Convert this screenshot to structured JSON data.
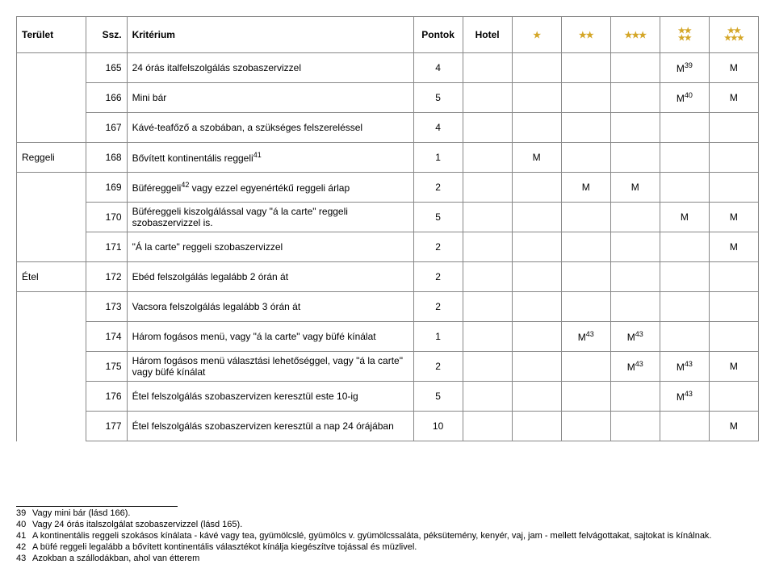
{
  "header": {
    "area": "Terület",
    "num": "Ssz.",
    "criterion": "Kritérium",
    "points": "Pontok",
    "hotel": "Hotel"
  },
  "stars": {
    "s1": "★",
    "s2": "★★",
    "s3": "★★★",
    "s4top": "★★",
    "s4bot": "★★",
    "s5top": "★★",
    "s5bot": "★★★"
  },
  "rows": [
    {
      "area": "",
      "num": "165",
      "crit": "24 órás italfelszolgálás szobaszervizzel",
      "sup": "",
      "pts": "4",
      "hotel": "",
      "c1": "",
      "c2": "",
      "c3": "",
      "c4": "M",
      "c4sup": "39",
      "c5": "M"
    },
    {
      "area": "",
      "num": "166",
      "crit": "Mini bár",
      "sup": "",
      "pts": "5",
      "hotel": "",
      "c1": "",
      "c2": "",
      "c3": "",
      "c4": "M",
      "c4sup": "40",
      "c5": "M"
    },
    {
      "area": "",
      "num": "167",
      "crit": "Kávé-teafőző a szobában, a szükséges felszereléssel",
      "sup": "",
      "pts": "4",
      "hotel": "",
      "c1": "",
      "c2": "",
      "c3": "",
      "c4": "",
      "c4sup": "",
      "c5": ""
    },
    {
      "area": "Reggeli",
      "num": "168",
      "crit": "Bővített kontinentális reggeli",
      "sup": "41",
      "pts": "1",
      "hotel": "",
      "c1": "M",
      "c2": "",
      "c3": "",
      "c4": "",
      "c4sup": "",
      "c5": ""
    },
    {
      "area": "",
      "num": "169",
      "crit": "Büféreggeli",
      "sup": "42",
      "crit2": " vagy ezzel egyenértékű reggeli árlap",
      "pts": "2",
      "hotel": "",
      "c1": "",
      "c2": "M",
      "c3": "M",
      "c4": "",
      "c4sup": "",
      "c5": ""
    },
    {
      "area": "",
      "num": "170",
      "crit": "Büféreggeli kiszolgálással vagy \"á la carte\" reggeli szobaszervizzel is.",
      "sup": "",
      "pts": "5",
      "hotel": "",
      "c1": "",
      "c2": "",
      "c3": "",
      "c4": "M",
      "c4sup": "",
      "c5": "M"
    },
    {
      "area": "",
      "num": "171",
      "crit": "\"Á la carte\" reggeli szobaszervizzel",
      "sup": "",
      "pts": "2",
      "hotel": "",
      "c1": "",
      "c2": "",
      "c3": "",
      "c4": "",
      "c4sup": "",
      "c5": "M"
    },
    {
      "area": "Étel",
      "num": "172",
      "crit": "Ebéd felszolgálás legalább 2 órán át",
      "sup": "",
      "pts": "2",
      "hotel": "",
      "c1": "",
      "c2": "",
      "c3": "",
      "c4": "",
      "c4sup": "",
      "c5": ""
    },
    {
      "area": "",
      "num": "173",
      "crit": "Vacsora felszolgálás legalább 3 órán át",
      "sup": "",
      "pts": "2",
      "hotel": "",
      "c1": "",
      "c2": "",
      "c3": "",
      "c4": "",
      "c4sup": "",
      "c5": ""
    },
    {
      "area": "",
      "num": "174",
      "crit": "Három fogásos menü, vagy \"á la carte\" vagy büfé kínálat",
      "sup": "",
      "pts": "1",
      "hotel": "",
      "c1": "",
      "c2": "M",
      "c2sup": "43",
      "c3": "M",
      "c3sup": "43",
      "c4": "",
      "c4sup": "",
      "c5": ""
    },
    {
      "area": "",
      "num": "175",
      "crit": "Három fogásos menü választási lehetőséggel, vagy \"á la carte\" vagy büfé kínálat",
      "sup": "",
      "pts": "2",
      "hotel": "",
      "c1": "",
      "c2": "",
      "c3": "M",
      "c3sup": "43",
      "c4": "M",
      "c4sup": "43",
      "c5": "M"
    },
    {
      "area": "",
      "num": "176",
      "crit": "Étel felszolgálás szobaszervizen keresztül este 10-ig",
      "sup": "",
      "pts": "5",
      "hotel": "",
      "c1": "",
      "c2": "",
      "c3": "",
      "c4": "M",
      "c4sup": "43",
      "c5": ""
    },
    {
      "area": "",
      "num": "177",
      "crit": "Étel felszolgálás szobaszervizen keresztül a nap 24 órájában",
      "sup": "",
      "pts": "10",
      "hotel": "",
      "c1": "",
      "c2": "",
      "c3": "",
      "c4": "",
      "c4sup": "",
      "c5": "M"
    }
  ],
  "footnotes": [
    {
      "n": "39",
      "text": "Vagy mini bár (lásd 166)."
    },
    {
      "n": "40",
      "text": "Vagy 24 órás italszolgálat szobaszervizzel  (lásd 165)."
    },
    {
      "n": "41",
      "text": "A kontinentális reggeli szokásos kínálata - kávé vagy tea,  gyümölcslé, gyümölcs v. gyümölcssaláta,  péksütemény, kenyér, vaj,  jam - mellett felvágottakat, sajtokat is kínálnak."
    },
    {
      "n": "42",
      "text": "A büfé reggeli legalább a bővített kontinentális választékot kínálja kiegészítve tojással és müzlivel."
    },
    {
      "n": "43",
      "text": "Azokban a szállodákban, ahol van étterem"
    }
  ]
}
